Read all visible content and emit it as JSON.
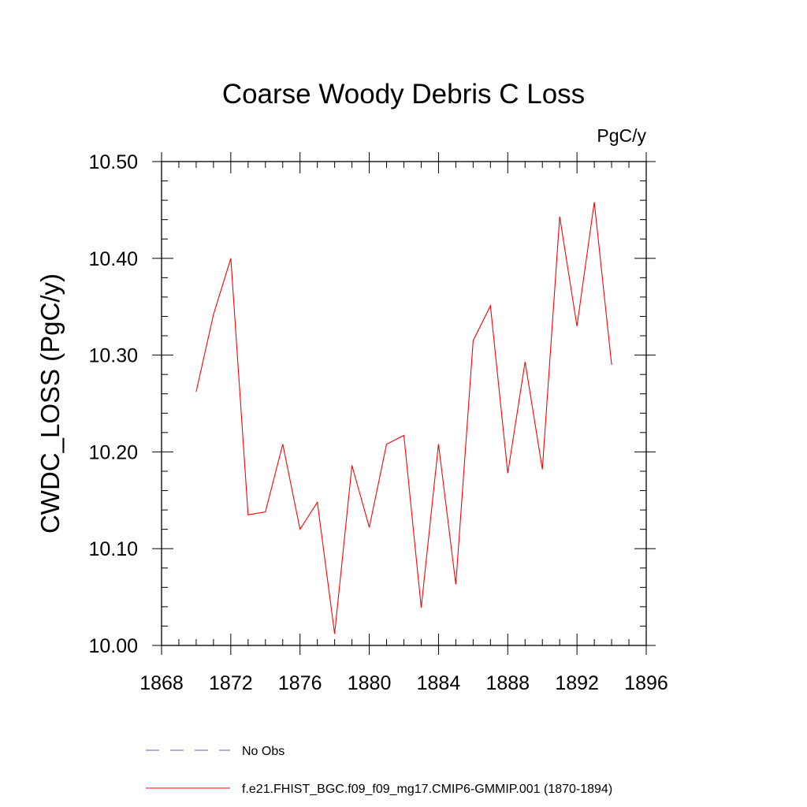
{
  "chart_data": {
    "type": "line",
    "title": "Coarse Woody Debris C Loss",
    "units_label": "PgC/y",
    "ylabel": "CWDC_LOSS  (PgC/y)",
    "xlabel": "",
    "xlim": [
      1868,
      1896
    ],
    "ylim": [
      10.0,
      10.5
    ],
    "x_ticks": [
      1868,
      1872,
      1876,
      1880,
      1884,
      1888,
      1892,
      1896
    ],
    "x_tick_labels": [
      "1868",
      "1872",
      "1876",
      "1880",
      "1884",
      "1888",
      "1892",
      "1896"
    ],
    "y_ticks": [
      10.0,
      10.1,
      10.2,
      10.3,
      10.4,
      10.5
    ],
    "y_tick_labels": [
      "10.00",
      "10.10",
      "10.20",
      "10.30",
      "10.40",
      "10.50"
    ],
    "series": [
      {
        "name": "f.e21.FHIST_BGC.f09_f09_mg17.CMIP6-GMMIP.001 (1870-1894)",
        "color": "#ff0000",
        "x": [
          1870,
          1871,
          1872,
          1873,
          1874,
          1875,
          1876,
          1877,
          1878,
          1879,
          1880,
          1881,
          1882,
          1883,
          1884,
          1885,
          1886,
          1887,
          1888,
          1889,
          1890,
          1891,
          1892,
          1893,
          1894
        ],
        "y": [
          10.262,
          10.342,
          10.4,
          10.135,
          10.138,
          10.208,
          10.12,
          10.148,
          10.012,
          10.186,
          10.122,
          10.208,
          10.217,
          10.039,
          10.208,
          10.063,
          10.315,
          10.351,
          10.178,
          10.293,
          10.182,
          10.443,
          10.33,
          10.458,
          10.29
        ]
      }
    ],
    "legend": [
      {
        "label": "No Obs",
        "color": "#6a5acd",
        "style": "dashed"
      },
      {
        "label": "f.e21.FHIST_BGC.f09_f09_mg17.CMIP6-GMMIP.001 (1870-1894)",
        "color": "#ff0000",
        "style": "solid"
      }
    ]
  }
}
